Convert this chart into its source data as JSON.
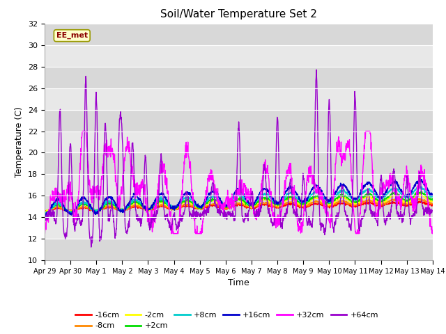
{
  "title": "Soil/Water Temperature Set 2",
  "xlabel": "Time",
  "ylabel": "Temperature (C)",
  "ylim": [
    10,
    32
  ],
  "yticks": [
    10,
    12,
    14,
    16,
    18,
    20,
    22,
    24,
    26,
    28,
    30,
    32
  ],
  "x_labels": [
    "Apr 29",
    "Apr 30",
    "May 1",
    "May 2",
    "May 3",
    "May 4",
    "May 5",
    "May 6",
    "May 7",
    "May 8",
    "May 9",
    "May 10",
    "May 11",
    "May 12",
    "May 13",
    "May 14"
  ],
  "annotation": "EE_met",
  "series": [
    {
      "label": "-16cm",
      "color": "#ff0000"
    },
    {
      "label": "-8cm",
      "color": "#ff8800"
    },
    {
      "label": "-2cm",
      "color": "#ffff00"
    },
    {
      "label": "+2cm",
      "color": "#00dd00"
    },
    {
      "label": "+8cm",
      "color": "#00cccc"
    },
    {
      "label": "+16cm",
      "color": "#0000cc"
    },
    {
      "label": "+32cm",
      "color": "#ff00ff"
    },
    {
      "label": "+64cm",
      "color": "#9900cc"
    }
  ],
  "background_color": "#ffffff",
  "plot_bg_color": "#e8e8e8",
  "grid_color": "#ffffff",
  "stripe_color": "#d8d8d8"
}
